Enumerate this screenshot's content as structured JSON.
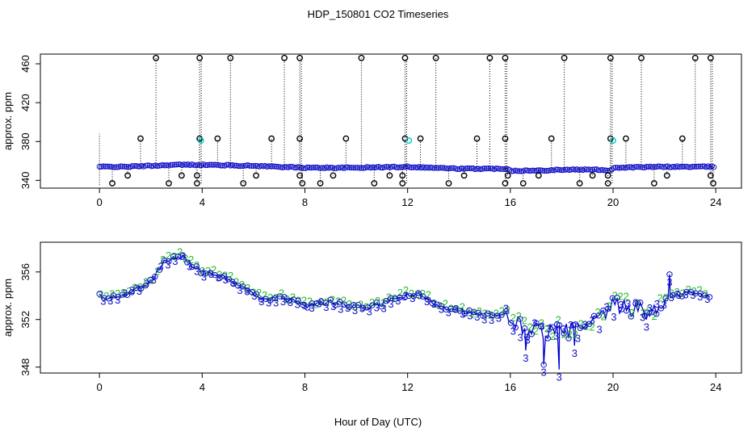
{
  "figure": {
    "title": "HDP_150801  CO2 Timeseries",
    "xlabel": "Hour of Day (UTC)"
  },
  "colors": {
    "axis": "#000000",
    "dark_marker": "#000000",
    "cyan_marker": "#00c8c8",
    "blue_marker": "#1010c8",
    "green_marker": "#22c022",
    "line_blue": "#0000cc"
  },
  "chart_data": [
    {
      "type": "scatter",
      "panel": "top",
      "ylabel": "approx. ppm",
      "xlim": [
        -2.3,
        25
      ],
      "ylim": [
        332,
        470
      ],
      "xticks": [
        0,
        4,
        8,
        12,
        16,
        20,
        24
      ],
      "xtick_labels": [
        "0",
        "4",
        "8",
        "12",
        "16",
        "20",
        "24"
      ],
      "yticks": [
        340,
        380,
        420,
        460
      ],
      "ytick_labels": [
        "340",
        "380",
        "420",
        "460"
      ],
      "baseline": [
        [
          0.0,
          354
        ],
        [
          1.0,
          354
        ],
        [
          2.0,
          355
        ],
        [
          3.0,
          356
        ],
        [
          3.9,
          356
        ],
        [
          4.0,
          356
        ],
        [
          6.0,
          355
        ],
        [
          8.0,
          353
        ],
        [
          10.0,
          353
        ],
        [
          12.0,
          354
        ],
        [
          14.0,
          352
        ],
        [
          15.9,
          352
        ],
        [
          16.0,
          350
        ],
        [
          17.0,
          350
        ],
        [
          18.0,
          351
        ],
        [
          19.5,
          351
        ],
        [
          19.9,
          350
        ],
        [
          20.0,
          353
        ],
        [
          22.0,
          354
        ],
        [
          24.0,
          354
        ]
      ],
      "spikes_high": [
        2.2,
        3.9,
        5.1,
        7.2,
        7.8,
        10.2,
        11.9,
        13.1,
        15.2,
        15.8,
        18.1,
        19.9,
        21.1,
        23.2,
        23.8
      ],
      "spikes_low": [
        0.5,
        2.7,
        3.8,
        5.6,
        7.9,
        8.6,
        10.7,
        11.8,
        13.6,
        15.8,
        16.5,
        18.7,
        19.8,
        21.6,
        23.9
      ],
      "spikes_mid_high": [
        1.6,
        3.9,
        4.6,
        6.7,
        7.8,
        9.6,
        11.9,
        12.5,
        14.7,
        15.8,
        17.6,
        19.9,
        20.5,
        22.7
      ],
      "spikes_mid_low": [
        1.1,
        3.2,
        3.8,
        6.1,
        7.8,
        9.1,
        11.3,
        11.8,
        14.2,
        15.9,
        17.1,
        19.2,
        19.8,
        22.1,
        23.8
      ],
      "cyan_points": [
        [
          3.95,
          381
        ],
        [
          12.05,
          381
        ],
        [
          20.0,
          381
        ]
      ],
      "gaps": [
        [
          3.9,
          4.05
        ],
        [
          7.8,
          8.05
        ],
        [
          11.85,
          12.1
        ],
        [
          15.75,
          16.0
        ],
        [
          19.8,
          20.0
        ],
        [
          23.75,
          24.0
        ]
      ]
    },
    {
      "type": "line",
      "panel": "bottom",
      "ylabel": "approx. ppm",
      "xlim": [
        -2.3,
        25
      ],
      "ylim": [
        347.5,
        358.5
      ],
      "xticks": [
        0,
        4,
        8,
        12,
        16,
        20,
        24
      ],
      "xtick_labels": [
        "0",
        "4",
        "8",
        "12",
        "16",
        "20",
        "24"
      ],
      "yticks": [
        348,
        352,
        356
      ],
      "ytick_labels": [
        "348",
        "352",
        "356"
      ],
      "trend": [
        [
          0.0,
          354.0
        ],
        [
          0.5,
          353.8
        ],
        [
          1.0,
          354.2
        ],
        [
          1.5,
          354.6
        ],
        [
          2.0,
          355.2
        ],
        [
          2.5,
          356.8
        ],
        [
          3.0,
          357.2
        ],
        [
          3.3,
          357.3
        ],
        [
          3.6,
          356.6
        ],
        [
          4.0,
          356.0
        ],
        [
          4.5,
          355.8
        ],
        [
          5.0,
          355.4
        ],
        [
          5.5,
          354.8
        ],
        [
          6.0,
          354.0
        ],
        [
          6.5,
          353.8
        ],
        [
          7.0,
          353.8
        ],
        [
          7.5,
          353.6
        ],
        [
          8.0,
          353.2
        ],
        [
          8.5,
          353.3
        ],
        [
          9.0,
          353.5
        ],
        [
          9.5,
          353.2
        ],
        [
          10.0,
          353.0
        ],
        [
          10.5,
          353.1
        ],
        [
          11.0,
          353.3
        ],
        [
          11.5,
          353.7
        ],
        [
          12.0,
          354.1
        ],
        [
          12.5,
          354.0
        ],
        [
          13.0,
          353.4
        ],
        [
          13.5,
          353.0
        ],
        [
          14.0,
          352.9
        ],
        [
          14.5,
          352.5
        ],
        [
          15.0,
          352.4
        ],
        [
          15.5,
          352.3
        ],
        [
          16.0,
          352.2
        ],
        [
          16.5,
          351.2
        ],
        [
          17.0,
          351.2
        ],
        [
          17.5,
          351.0
        ],
        [
          18.0,
          351.0
        ],
        [
          18.5,
          351.2
        ],
        [
          19.0,
          351.3
        ],
        [
          19.5,
          352.0
        ],
        [
          20.0,
          353.2
        ],
        [
          20.5,
          353.0
        ],
        [
          21.0,
          352.8
        ],
        [
          21.5,
          352.6
        ],
        [
          22.0,
          353.6
        ],
        [
          22.5,
          354.0
        ],
        [
          23.0,
          354.3
        ],
        [
          23.5,
          354.0
        ],
        [
          23.8,
          353.9
        ]
      ],
      "series": [
        {
          "label": "2",
          "jitter": 0.5,
          "offset": 0.25
        },
        {
          "label": "3",
          "jitter": 0.5,
          "offset": -0.15
        }
      ],
      "dips": [
        [
          16.6,
          349.4
        ],
        [
          17.3,
          348.2
        ],
        [
          17.9,
          347.8
        ],
        [
          18.5,
          349.8
        ],
        [
          21.3,
          352.0
        ],
        [
          22.2,
          355.8
        ]
      ]
    }
  ]
}
